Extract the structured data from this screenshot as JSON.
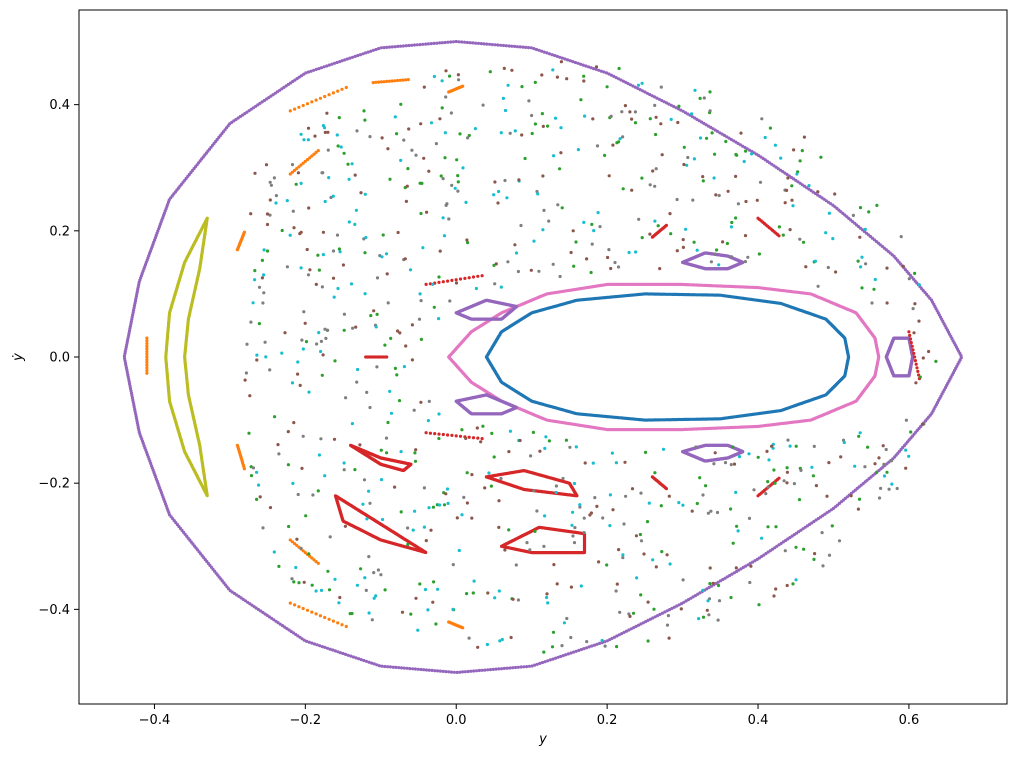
{
  "chart_data": {
    "type": "scatter",
    "title": "",
    "xlabel": "y",
    "ylabel": "ẏ",
    "xlim": [
      -0.5,
      0.73
    ],
    "ylim": [
      -0.55,
      0.55
    ],
    "xticks": [
      -0.4,
      -0.2,
      0.0,
      0.2,
      0.4,
      0.6
    ],
    "xtick_labels": [
      "−0.4",
      "−0.2",
      "0.0",
      "0.2",
      "0.4",
      "0.6"
    ],
    "yticks": [
      -0.4,
      -0.2,
      0.0,
      0.2,
      0.4
    ],
    "ytick_labels": [
      "−0.4",
      "−0.2",
      "0.0",
      "0.2",
      "0.4"
    ],
    "grid": false,
    "legend": "none",
    "series": [
      {
        "color": "#1f77b4",
        "structure": "curve",
        "pts": [
          [
            0.04,
            0.0
          ],
          [
            0.06,
            0.04
          ],
          [
            0.1,
            0.07
          ],
          [
            0.16,
            0.09
          ],
          [
            0.25,
            0.1
          ],
          [
            0.35,
            0.098
          ],
          [
            0.43,
            0.085
          ],
          [
            0.49,
            0.06
          ],
          [
            0.515,
            0.03
          ],
          [
            0.52,
            0.0
          ],
          [
            0.515,
            -0.03
          ],
          [
            0.49,
            -0.06
          ],
          [
            0.43,
            -0.085
          ],
          [
            0.35,
            -0.098
          ],
          [
            0.25,
            -0.1
          ],
          [
            0.16,
            -0.09
          ],
          [
            0.1,
            -0.07
          ],
          [
            0.06,
            -0.04
          ],
          [
            0.04,
            0.0
          ]
        ]
      },
      {
        "color": "#e377c2",
        "structure": "curve",
        "pts": [
          [
            -0.01,
            0.0
          ],
          [
            0.02,
            0.04
          ],
          [
            0.06,
            0.07
          ],
          [
            0.12,
            0.1
          ],
          [
            0.2,
            0.115
          ],
          [
            0.3,
            0.115
          ],
          [
            0.4,
            0.11
          ],
          [
            0.47,
            0.1
          ],
          [
            0.53,
            0.07
          ],
          [
            0.555,
            0.03
          ],
          [
            0.56,
            0.0
          ],
          [
            0.555,
            -0.03
          ],
          [
            0.53,
            -0.07
          ],
          [
            0.47,
            -0.1
          ],
          [
            0.4,
            -0.11
          ],
          [
            0.3,
            -0.115
          ],
          [
            0.2,
            -0.115
          ],
          [
            0.12,
            -0.1
          ],
          [
            0.06,
            -0.07
          ],
          [
            0.02,
            -0.04
          ],
          [
            -0.01,
            0.0
          ]
        ]
      },
      {
        "color": "#9467bd",
        "structure": "curve",
        "pts": [
          [
            0.0,
            0.5
          ],
          [
            0.1,
            0.49
          ],
          [
            0.2,
            0.45
          ],
          [
            0.3,
            0.39
          ],
          [
            0.4,
            0.32
          ],
          [
            0.5,
            0.24
          ],
          [
            0.58,
            0.16
          ],
          [
            0.63,
            0.09
          ],
          [
            0.67,
            0.0
          ],
          [
            0.63,
            -0.09
          ],
          [
            0.58,
            -0.16
          ],
          [
            0.5,
            -0.24
          ],
          [
            0.4,
            -0.32
          ],
          [
            0.3,
            -0.39
          ],
          [
            0.2,
            -0.45
          ],
          [
            0.1,
            -0.49
          ],
          [
            0.0,
            -0.5
          ],
          [
            -0.1,
            -0.49
          ],
          [
            -0.2,
            -0.45
          ],
          [
            -0.3,
            -0.37
          ],
          [
            -0.38,
            -0.25
          ],
          [
            -0.42,
            -0.12
          ],
          [
            -0.44,
            0.0
          ],
          [
            -0.42,
            0.12
          ],
          [
            -0.38,
            0.25
          ],
          [
            -0.3,
            0.37
          ],
          [
            -0.2,
            0.45
          ],
          [
            -0.1,
            0.49
          ],
          [
            0.0,
            0.5
          ]
        ]
      },
      {
        "color": "#9467bd",
        "structure": "curve",
        "pts": [
          [
            0.3,
            0.15
          ],
          [
            0.33,
            0.165
          ],
          [
            0.36,
            0.16
          ],
          [
            0.38,
            0.15
          ],
          [
            0.36,
            0.14
          ],
          [
            0.33,
            0.14
          ],
          [
            0.3,
            0.15
          ]
        ]
      },
      {
        "color": "#9467bd",
        "structure": "curve",
        "pts": [
          [
            0.3,
            -0.15
          ],
          [
            0.33,
            -0.14
          ],
          [
            0.36,
            -0.14
          ],
          [
            0.38,
            -0.15
          ],
          [
            0.36,
            -0.16
          ],
          [
            0.33,
            -0.165
          ],
          [
            0.3,
            -0.15
          ]
        ]
      },
      {
        "color": "#9467bd",
        "structure": "curve",
        "pts": [
          [
            0.57,
            0.0
          ],
          [
            0.58,
            0.03
          ],
          [
            0.6,
            0.03
          ],
          [
            0.605,
            0.0
          ],
          [
            0.6,
            -0.03
          ],
          [
            0.58,
            -0.03
          ],
          [
            0.57,
            0.0
          ]
        ]
      },
      {
        "color": "#9467bd",
        "structure": "curve",
        "pts": [
          [
            0.0,
            0.07
          ],
          [
            0.04,
            0.09
          ],
          [
            0.08,
            0.08
          ],
          [
            0.06,
            0.06
          ],
          [
            0.02,
            0.06
          ],
          [
            0.0,
            0.07
          ]
        ]
      },
      {
        "color": "#9467bd",
        "structure": "curve",
        "pts": [
          [
            0.0,
            -0.07
          ],
          [
            0.04,
            -0.06
          ],
          [
            0.08,
            -0.08
          ],
          [
            0.06,
            -0.09
          ],
          [
            0.02,
            -0.09
          ],
          [
            0.0,
            -0.07
          ]
        ]
      },
      {
        "color": "#bcbd22",
        "structure": "curve",
        "pts": [
          [
            -0.33,
            0.22
          ],
          [
            -0.36,
            0.15
          ],
          [
            -0.38,
            0.07
          ],
          [
            -0.385,
            0.0
          ],
          [
            -0.38,
            -0.07
          ],
          [
            -0.36,
            -0.15
          ],
          [
            -0.33,
            -0.22
          ],
          [
            -0.34,
            -0.14
          ],
          [
            -0.355,
            -0.06
          ],
          [
            -0.36,
            0.0
          ],
          [
            -0.355,
            0.06
          ],
          [
            -0.34,
            0.14
          ],
          [
            -0.33,
            0.22
          ]
        ]
      },
      {
        "color": "#ff7f0e",
        "structure": "segments",
        "segs": [
          [
            [
              -0.22,
              0.39
            ],
            [
              -0.14,
              0.43
            ]
          ],
          [
            [
              -0.11,
              0.435
            ],
            [
              -0.06,
              0.44
            ]
          ],
          [
            [
              -0.22,
              0.29
            ],
            [
              -0.18,
              0.33
            ]
          ],
          [
            [
              -0.29,
              0.17
            ],
            [
              -0.28,
              0.2
            ]
          ],
          [
            [
              -0.41,
              0.03
            ],
            [
              -0.41,
              -0.03
            ]
          ],
          [
            [
              -0.29,
              -0.14
            ],
            [
              -0.28,
              -0.18
            ]
          ],
          [
            [
              -0.22,
              -0.29
            ],
            [
              -0.18,
              -0.33
            ]
          ],
          [
            [
              -0.22,
              -0.39
            ],
            [
              -0.14,
              -0.43
            ]
          ],
          [
            [
              -0.01,
              0.42
            ],
            [
              0.01,
              0.43
            ]
          ],
          [
            [
              -0.01,
              -0.42
            ],
            [
              0.01,
              -0.43
            ]
          ]
        ]
      },
      {
        "color": "#d62728",
        "structure": "segments",
        "segs": [
          [
            [
              -0.04,
              0.115
            ],
            [
              0.04,
              0.13
            ]
          ],
          [
            [
              -0.04,
              -0.12
            ],
            [
              0.04,
              -0.13
            ]
          ],
          [
            [
              -0.12,
              0.0
            ],
            [
              -0.09,
              0.0
            ]
          ],
          [
            [
              0.26,
              0.19
            ],
            [
              0.28,
              0.21
            ]
          ],
          [
            [
              0.26,
              -0.19
            ],
            [
              0.28,
              -0.21
            ]
          ],
          [
            [
              0.4,
              0.22
            ],
            [
              0.43,
              0.19
            ]
          ],
          [
            [
              0.4,
              -0.22
            ],
            [
              0.43,
              -0.19
            ]
          ],
          [
            [
              0.6,
              0.04
            ],
            [
              0.615,
              -0.04
            ]
          ]
        ]
      },
      {
        "color": "#d62728",
        "structure": "curve",
        "pts": [
          [
            -0.14,
            -0.14
          ],
          [
            -0.1,
            -0.17
          ],
          [
            -0.07,
            -0.18
          ],
          [
            -0.06,
            -0.17
          ],
          [
            -0.1,
            -0.16
          ],
          [
            -0.14,
            -0.14
          ]
        ]
      },
      {
        "color": "#d62728",
        "structure": "curve",
        "pts": [
          [
            0.04,
            -0.19
          ],
          [
            0.09,
            -0.18
          ],
          [
            0.15,
            -0.2
          ],
          [
            0.16,
            -0.22
          ],
          [
            0.09,
            -0.21
          ],
          [
            0.04,
            -0.19
          ]
        ]
      },
      {
        "color": "#d62728",
        "structure": "curve",
        "pts": [
          [
            -0.16,
            -0.22
          ],
          [
            -0.12,
            -0.25
          ],
          [
            -0.08,
            -0.28
          ],
          [
            -0.04,
            -0.31
          ],
          [
            -0.1,
            -0.29
          ],
          [
            -0.15,
            -0.26
          ],
          [
            -0.16,
            -0.22
          ]
        ]
      },
      {
        "color": "#d62728",
        "structure": "curve",
        "pts": [
          [
            0.06,
            -0.3
          ],
          [
            0.11,
            -0.27
          ],
          [
            0.17,
            -0.28
          ],
          [
            0.17,
            -0.31
          ],
          [
            0.1,
            -0.31
          ],
          [
            0.06,
            -0.3
          ]
        ]
      },
      {
        "color": "#2ca02c",
        "structure": "scatter",
        "region": "chaotic"
      },
      {
        "color": "#7f7f7f",
        "structure": "scatter",
        "region": "chaotic"
      },
      {
        "color": "#17becf",
        "structure": "scatter",
        "region": "chaotic"
      },
      {
        "color": "#8c564b",
        "structure": "scatter",
        "region": "chaotic"
      }
    ]
  }
}
